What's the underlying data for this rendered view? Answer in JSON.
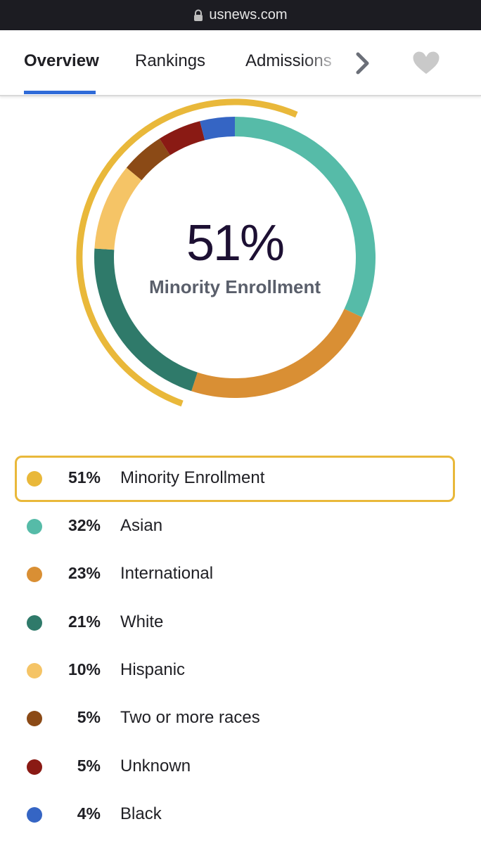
{
  "browser": {
    "url": "usnews.com",
    "lock_icon": "lock-icon"
  },
  "tabs": {
    "items": [
      {
        "label": "Overview",
        "active": true
      },
      {
        "label": "Rankings",
        "active": false
      },
      {
        "label": "Admissions",
        "active": false
      }
    ],
    "next_icon": "chevron-right-icon",
    "favorite_icon": "heart-icon"
  },
  "chart_data": {
    "type": "pie",
    "style": "donut",
    "center_value": "51%",
    "center_label": "Minority Enrollment",
    "outer_ring": {
      "name": "Minority Enrollment",
      "value": 51,
      "color": "#e9b83a"
    },
    "slices": [
      {
        "name": "Asian",
        "value": 32,
        "label": "32%",
        "color": "#56bba8"
      },
      {
        "name": "International",
        "value": 23,
        "label": "23%",
        "color": "#d98f34"
      },
      {
        "name": "White",
        "value": 21,
        "label": "21%",
        "color": "#2f7a6a"
      },
      {
        "name": "Hispanic",
        "value": 10,
        "label": "10%",
        "color": "#f5c466"
      },
      {
        "name": "Two or more races",
        "value": 5,
        "label": "5%",
        "color": "#8b4a16"
      },
      {
        "name": "Unknown",
        "value": 5,
        "label": "5%",
        "color": "#8a1a14"
      },
      {
        "name": "Black",
        "value": 4,
        "label": "4%",
        "color": "#3565c4"
      }
    ]
  },
  "legend": {
    "items": [
      {
        "label": "51%",
        "name": "Minority Enrollment",
        "color": "#e9b83a",
        "highlighted": true
      },
      {
        "label": "32%",
        "name": "Asian",
        "color": "#56bba8",
        "highlighted": false
      },
      {
        "label": "23%",
        "name": "International",
        "color": "#d98f34",
        "highlighted": false
      },
      {
        "label": "21%",
        "name": "White",
        "color": "#2f7a6a",
        "highlighted": false
      },
      {
        "label": "10%",
        "name": "Hispanic",
        "color": "#f5c466",
        "highlighted": false
      },
      {
        "label": "5%",
        "name": "Two or more races",
        "color": "#8b4a16",
        "highlighted": false
      },
      {
        "label": "5%",
        "name": "Unknown",
        "color": "#8a1a14",
        "highlighted": false
      },
      {
        "label": "4%",
        "name": "Black",
        "color": "#3565c4",
        "highlighted": false
      }
    ]
  }
}
